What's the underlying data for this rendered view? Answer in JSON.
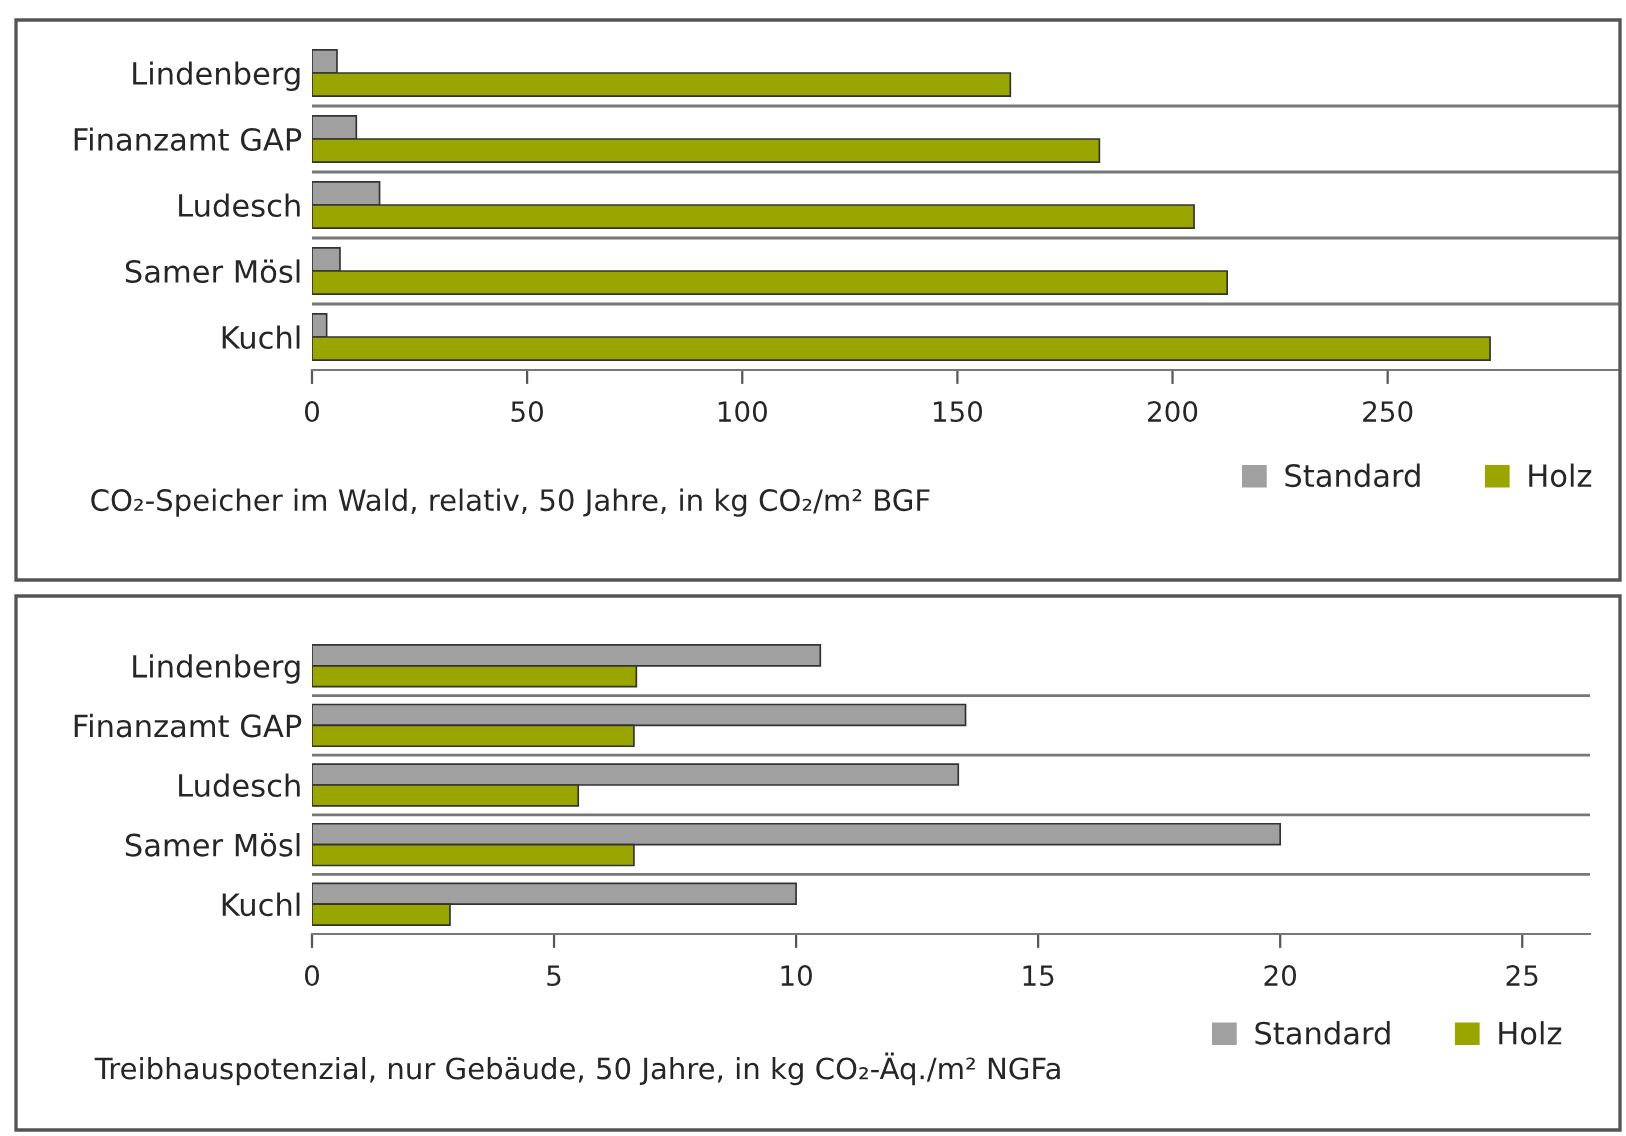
{
  "chart_data": [
    {
      "type": "bar",
      "orientation": "horizontal",
      "xlabel": "CO₂-Speicher im Wald, relativ, 50 Jahre, in kg CO₂/m² BGF",
      "categories": [
        "Lindenberg",
        "Finanzamt GAP",
        "Ludesch",
        "Samer Mösl",
        "Kuchl"
      ],
      "series": [
        {
          "name": "Standard",
          "color": "#a0a0a0",
          "values": [
            5.8,
            10.3,
            15.7,
            6.5,
            3.4
          ]
        },
        {
          "name": "Holz",
          "color": "#99a600",
          "values": [
            162.3,
            183,
            205,
            212.7,
            273.8
          ]
        }
      ],
      "xlim": [
        0,
        304
      ],
      "xticks": [
        0,
        50,
        100,
        150,
        200,
        250
      ],
      "grid": false,
      "legend": "bottom right"
    },
    {
      "type": "bar",
      "orientation": "horizontal",
      "xlabel": "Treibhauspotenzial, nur Gebäude, 50 Jahre, in kg CO₂-Äq./m² NGFa",
      "categories": [
        "Lindenberg",
        "Finanzamt GAP",
        "Ludesch",
        "Samer Mösl",
        "Kuchl"
      ],
      "series": [
        {
          "name": "Standard",
          "color": "#a0a0a0",
          "values": [
            10.5,
            13.5,
            13.35,
            20.0,
            10.0
          ]
        },
        {
          "name": "Holz",
          "color": "#99a600",
          "values": [
            6.7,
            6.65,
            5.5,
            6.65,
            2.85
          ]
        }
      ],
      "xlim": [
        0,
        26.4
      ],
      "xticks": [
        0,
        5,
        10,
        15,
        20,
        25
      ],
      "grid": false,
      "legend": "bottom right"
    }
  ]
}
